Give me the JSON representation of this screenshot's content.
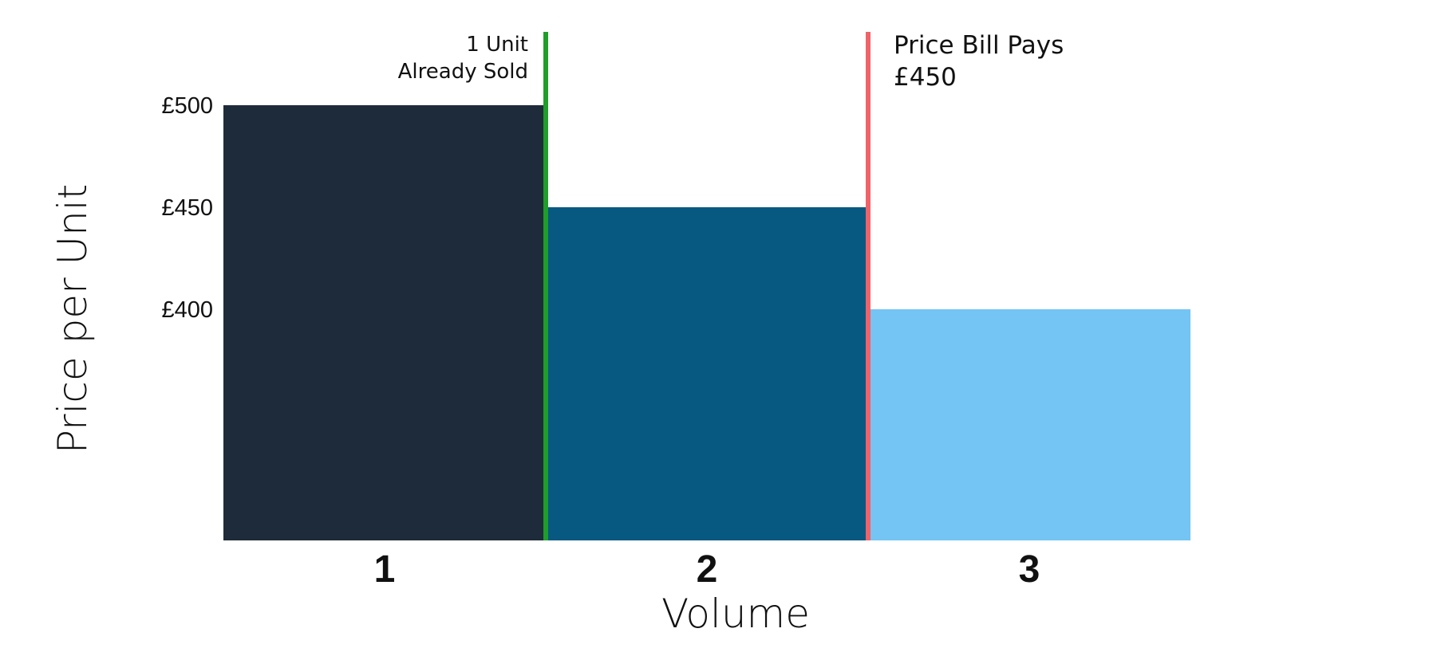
{
  "chart_data": {
    "type": "bar",
    "categories": [
      "1",
      "2",
      "3"
    ],
    "values": [
      500,
      450,
      400
    ],
    "bar_colors": [
      "#1e2b3a",
      "#075982",
      "#74c4f4"
    ],
    "xlabel": "Volume",
    "ylabel": "Price per Unit",
    "ytick_values": [
      500,
      450,
      400
    ],
    "ytick_labels": [
      "£500",
      "£450",
      "£400"
    ],
    "grid": false,
    "annotations": [
      {
        "name": "already-sold-marker",
        "at_boundary_after": "1",
        "color": "#1f9e2a",
        "lines": [
          "1 Unit",
          "Already Sold"
        ],
        "text_side": "left"
      },
      {
        "name": "bill-price-marker",
        "at_boundary_after": "2",
        "color": "#f0626a",
        "lines": [
          "Price Bill Pays",
          "£450"
        ],
        "text_side": "right"
      }
    ]
  }
}
